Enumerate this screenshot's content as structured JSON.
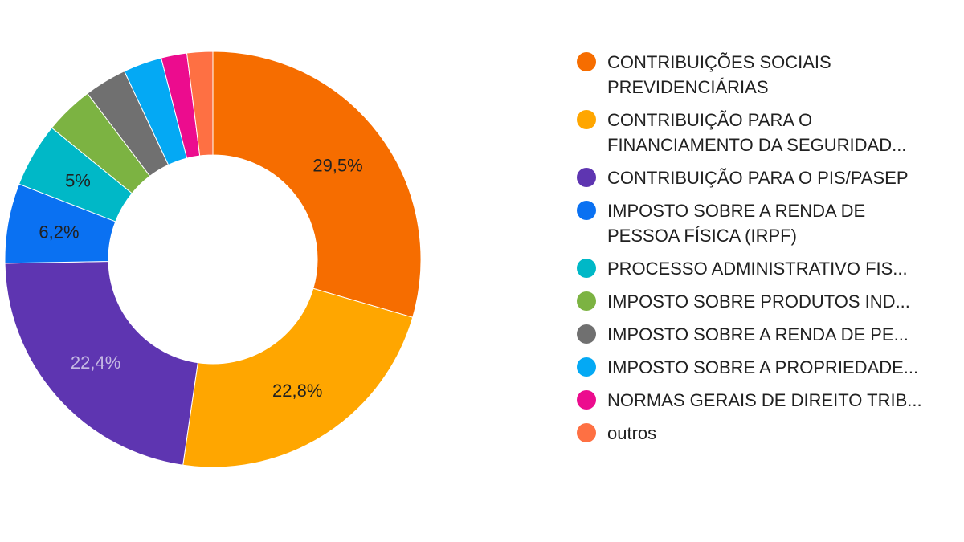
{
  "chart_data": {
    "type": "pie",
    "donut": true,
    "legend_position": "right",
    "slices": [
      {
        "name": "CONTRIBUIÇÕES SOCIAIS\nPREVIDENCIÁRIAS",
        "value": 29.5,
        "label": "29,5%",
        "color": "#f66d00",
        "label_color": "#212121"
      },
      {
        "name": "CONTRIBUIÇÃO PARA O\nFINANCIAMENTO DA SEGURIDAD...",
        "value": 22.8,
        "label": "22,8%",
        "color": "#ffa600",
        "label_color": "#212121"
      },
      {
        "name": "CONTRIBUIÇÃO PARA O PIS/PASEP",
        "value": 22.4,
        "label": "22,4%",
        "color": "#5e35b1",
        "label_color": "#c5b9e3"
      },
      {
        "name": "IMPOSTO SOBRE A RENDA DE\nPESSOA FÍSICA (IRPF)",
        "value": 6.2,
        "label": "6,2%",
        "color": "#0a71f2",
        "label_color": "#212121"
      },
      {
        "name": "PROCESSO ADMINISTRATIVO FIS...",
        "value": 5.0,
        "label": "5%",
        "color": "#00b8c7",
        "label_color": "#212121"
      },
      {
        "name": "IMPOSTO SOBRE PRODUTOS IND...",
        "value": 3.8,
        "label": "",
        "color": "#7cb342",
        "label_color": "#212121"
      },
      {
        "name": "IMPOSTO SOBRE A RENDA DE PE...",
        "value": 3.3,
        "label": "",
        "color": "#707070",
        "label_color": "#212121"
      },
      {
        "name": "IMPOSTO SOBRE A PROPRIEDADE...",
        "value": 3.0,
        "label": "",
        "color": "#04a9f4",
        "label_color": "#212121"
      },
      {
        "name": "NORMAS GERAIS DE DIREITO TRIB...",
        "value": 2.0,
        "label": "",
        "color": "#ec0c8e",
        "label_color": "#212121"
      },
      {
        "name": "outros",
        "value": 2.0,
        "label": "",
        "color": "#fe7043",
        "label_color": "#212121"
      }
    ]
  }
}
